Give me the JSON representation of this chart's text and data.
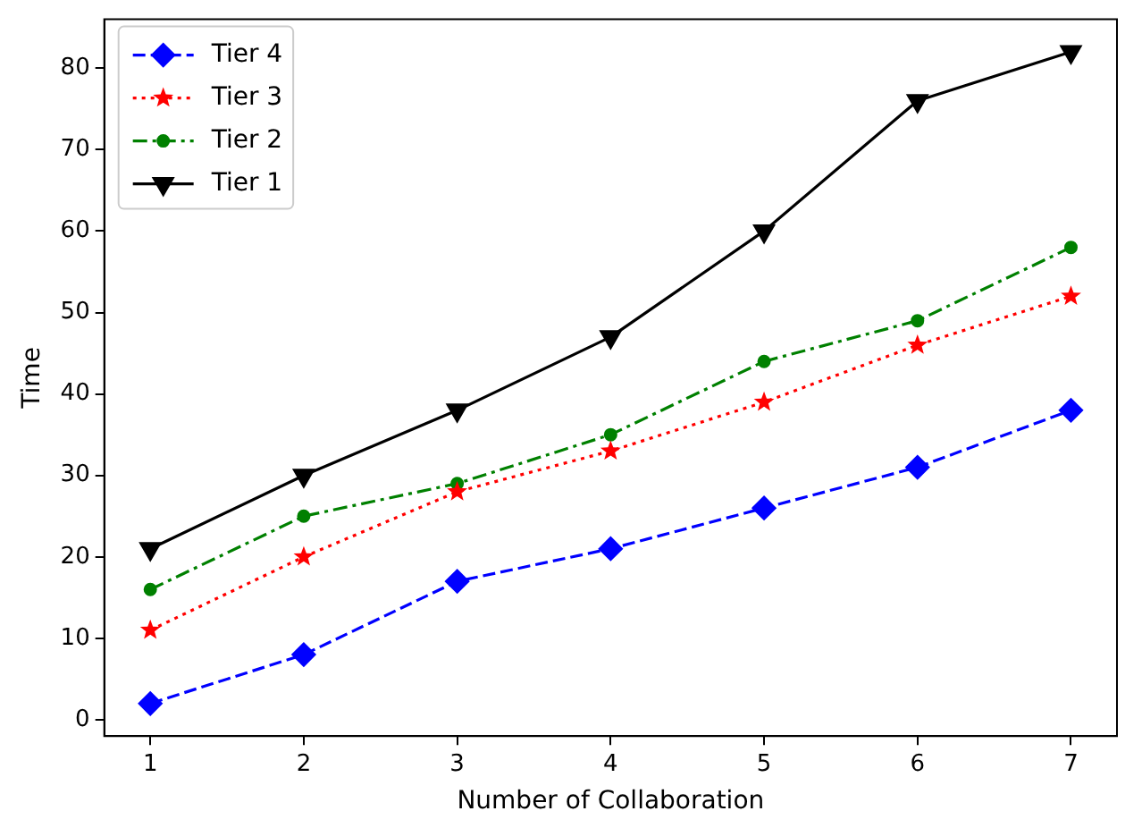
{
  "chart_data": {
    "type": "line",
    "xlabel": "Number of Collaboration",
    "ylabel": "Time",
    "x": [
      1,
      2,
      3,
      4,
      5,
      6,
      7
    ],
    "xlim": [
      0.7,
      7.3
    ],
    "xticks": [
      1,
      2,
      3,
      4,
      5,
      6,
      7
    ],
    "ylim": [
      -2,
      86
    ],
    "yticks": [
      0,
      10,
      20,
      30,
      40,
      50,
      60,
      70,
      80
    ],
    "grid": false,
    "legend": "top left",
    "series": [
      {
        "name": "Tier 4",
        "color": "#0000ff",
        "marker": "diamond",
        "line_style": "dashed",
        "values": [
          2,
          8,
          17,
          21,
          26,
          31,
          38
        ]
      },
      {
        "name": "Tier 3",
        "color": "#ff0000",
        "marker": "star",
        "line_style": "dotted",
        "values": [
          11,
          20,
          28,
          33,
          39,
          46,
          52
        ]
      },
      {
        "name": "Tier 2",
        "color": "#008000",
        "marker": "circle",
        "line_style": "dashdot",
        "values": [
          16,
          25,
          29,
          35,
          44,
          49,
          58
        ]
      },
      {
        "name": "Tier 1",
        "color": "#000000",
        "marker": "triangle_down",
        "line_style": "solid",
        "values": [
          21,
          30,
          38,
          47,
          60,
          76,
          82
        ]
      }
    ]
  }
}
